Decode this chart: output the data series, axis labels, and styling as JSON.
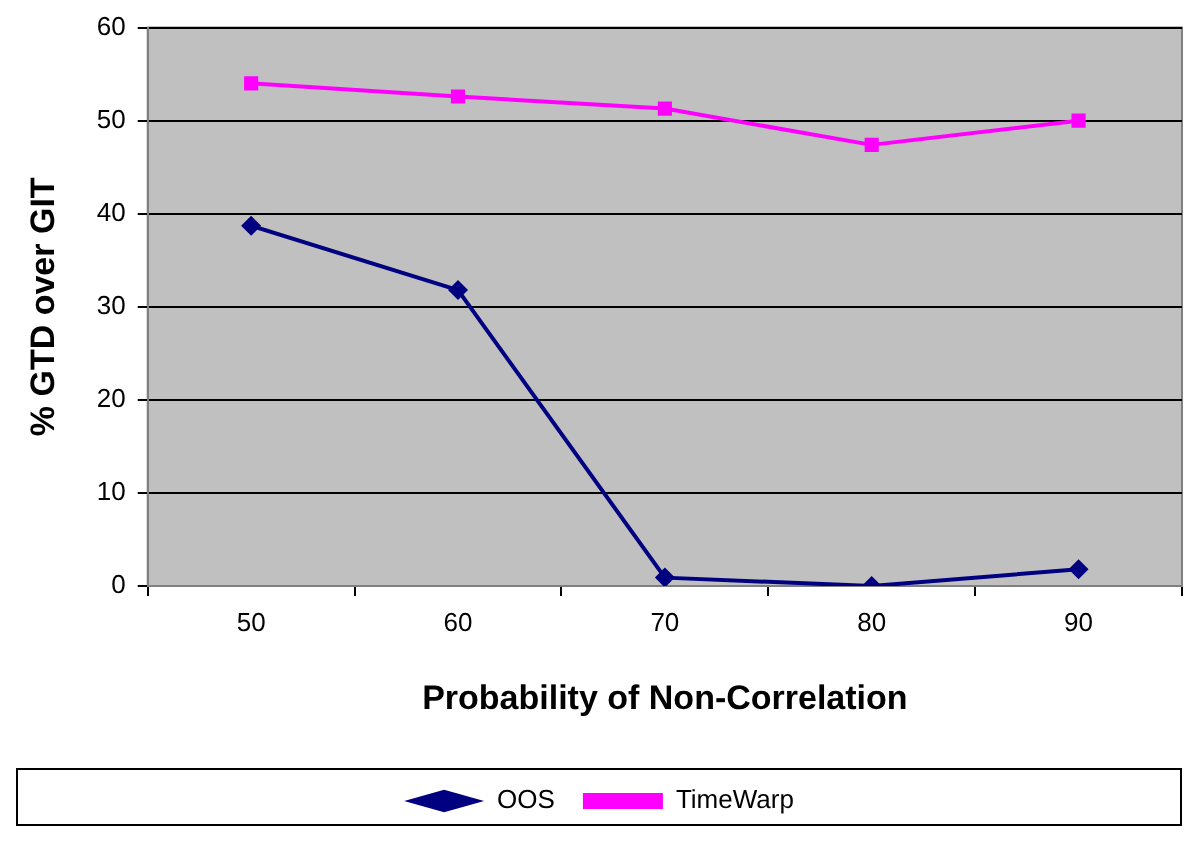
{
  "chart_data": {
    "type": "line",
    "xlabel": "Probability of Non-Correlation",
    "ylabel": "% GTD over GIT",
    "categories": [
      "50",
      "60",
      "70",
      "80",
      "90"
    ],
    "series": [
      {
        "name": "OOS",
        "color": "#000080",
        "marker": "diamond",
        "values": [
          38.7,
          31.8,
          0.9,
          0,
          1.8
        ]
      },
      {
        "name": "TimeWarp",
        "color": "#ff00ff",
        "marker": "square",
        "values": [
          54.0,
          52.6,
          51.3,
          47.4,
          50.0
        ]
      }
    ],
    "ylim": [
      0,
      60
    ],
    "yticks": [
      0,
      10,
      20,
      30,
      40,
      50,
      60
    ],
    "grid": "y",
    "legend": "bottom"
  }
}
